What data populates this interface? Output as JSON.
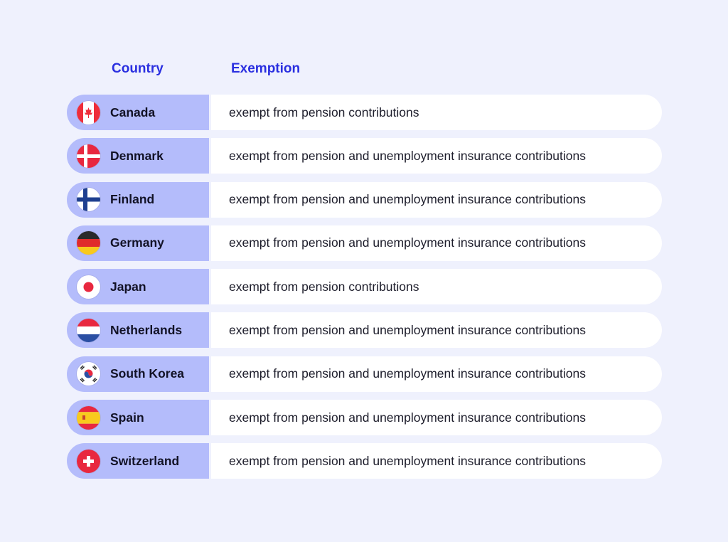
{
  "headers": {
    "country": "Country",
    "exemption": "Exemption"
  },
  "rows": [
    {
      "country": "Canada",
      "flag_icon": "canada-flag-icon",
      "exemption": "exempt from pension contributions"
    },
    {
      "country": "Denmark",
      "flag_icon": "denmark-flag-icon",
      "exemption": "exempt from pension and unemployment insurance contributions"
    },
    {
      "country": "Finland",
      "flag_icon": "finland-flag-icon",
      "exemption": "exempt from pension and unemployment insurance contributions"
    },
    {
      "country": "Germany",
      "flag_icon": "germany-flag-icon",
      "exemption": "exempt from pension and unemployment insurance contributions"
    },
    {
      "country": "Japan",
      "flag_icon": "japan-flag-icon",
      "exemption": "exempt from pension contributions"
    },
    {
      "country": "Netherlands",
      "flag_icon": "netherlands-flag-icon",
      "exemption": "exempt from pension and unemployment insurance contributions"
    },
    {
      "country": "South Korea",
      "flag_icon": "south-korea-flag-icon",
      "exemption": "exempt from pension and unemployment insurance contributions"
    },
    {
      "country": "Spain",
      "flag_icon": "spain-flag-icon",
      "exemption": "exempt from pension and unemployment insurance contributions"
    },
    {
      "country": "Switzerland",
      "flag_icon": "switzerland-flag-icon",
      "exemption": "exempt from pension and unemployment insurance contributions"
    }
  ],
  "colors": {
    "page_background": "#eff1fd",
    "header_text": "#2a2fe0",
    "country_cell": "#b4bcfb",
    "exemption_cell": "#ffffff"
  }
}
